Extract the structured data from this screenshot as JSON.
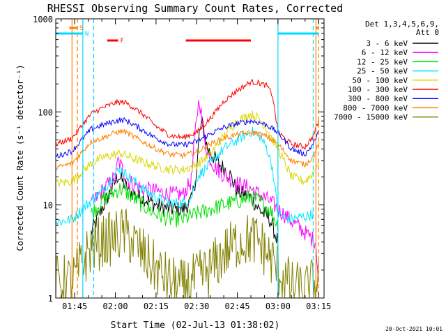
{
  "chart_data": {
    "type": "line",
    "title": "RHESSI Observing Summary Count Rates, Corrected",
    "xlabel": "Start Time (02-Jul-13 01:38:02)",
    "ylabel": "Corrected Count Rate (s⁻¹ detector⁻¹)",
    "y_scale": "log",
    "ylim": [
      1,
      1000
    ],
    "xlim": [
      "01:38",
      "03:17"
    ],
    "x_ticks": [
      "01:45",
      "02:00",
      "02:15",
      "02:30",
      "02:45",
      "03:00",
      "03:15"
    ],
    "y_ticks": [
      "1",
      "10",
      "100",
      "1000"
    ],
    "legend_header": [
      "Det 1,3,4,5,6,9,",
      "Att 0"
    ],
    "legend_position": "right",
    "timestamp": "20-Oct-2021 10:01",
    "flags": [
      {
        "label": "S",
        "color": "#ff8000",
        "intervals": [
          [
            "01:43",
            "01:46"
          ],
          [
            "03:14",
            "03:15"
          ]
        ]
      },
      {
        "label": "N",
        "color": "#00d8ff",
        "intervals": [
          [
            "01:38",
            "01:48"
          ],
          [
            "03:00",
            "03:15"
          ]
        ]
      },
      {
        "label": "F",
        "color": "#ff0000",
        "intervals": [
          [
            "01:57",
            "02:01"
          ],
          [
            "02:26",
            "02:50"
          ]
        ]
      }
    ],
    "vertical_markers": [
      {
        "time": "01:44",
        "color": "#ff8000",
        "style": "solid"
      },
      {
        "time": "01:46",
        "color": "#ff8000",
        "style": "dashed"
      },
      {
        "time": "01:48",
        "color": "#00d8ff",
        "style": "solid"
      },
      {
        "time": "01:52",
        "color": "#00d8ff",
        "style": "dashed"
      },
      {
        "time": "03:00",
        "color": "#00d8ff",
        "style": "solid"
      },
      {
        "time": "03:13",
        "color": "#00d8ff",
        "style": "dashed"
      },
      {
        "time": "03:14",
        "color": "#ff8000",
        "style": "solid"
      },
      {
        "time": "03:15",
        "color": "#ff8000",
        "style": "dashed"
      }
    ],
    "series": [
      {
        "name": "3 - 6 keV",
        "color": "#000000",
        "noise": 0.09,
        "points": [
          [
            "01:51",
            5
          ],
          [
            "01:55",
            9
          ],
          [
            "02:00",
            18
          ],
          [
            "02:01",
            21
          ],
          [
            "02:05",
            14
          ],
          [
            "02:10",
            12
          ],
          [
            "02:15",
            10
          ],
          [
            "02:20",
            9
          ],
          [
            "02:25",
            9
          ],
          [
            "02:28",
            11
          ],
          [
            "02:30",
            22
          ],
          [
            "02:31",
            60
          ],
          [
            "02:32",
            75
          ],
          [
            "02:34",
            40
          ],
          [
            "02:38",
            28
          ],
          [
            "02:42",
            22
          ],
          [
            "02:45",
            14
          ],
          [
            "02:50",
            12
          ],
          [
            "02:53",
            9
          ],
          [
            "02:57",
            7
          ],
          [
            "03:00",
            4
          ]
        ]
      },
      {
        "name": "6 - 12 keV",
        "color": "#ff00ff",
        "noise": 0.09,
        "points": [
          [
            "01:51",
            10
          ],
          [
            "01:55",
            14
          ],
          [
            "02:00",
            20
          ],
          [
            "02:01",
            30
          ],
          [
            "02:05",
            18
          ],
          [
            "02:10",
            15
          ],
          [
            "02:15",
            14
          ],
          [
            "02:20",
            13
          ],
          [
            "02:25",
            13
          ],
          [
            "02:28",
            18
          ],
          [
            "02:30",
            90
          ],
          [
            "02:31",
            140
          ],
          [
            "02:32",
            80
          ],
          [
            "02:34",
            35
          ],
          [
            "02:37",
            25
          ],
          [
            "02:40",
            21
          ],
          [
            "02:45",
            17
          ],
          [
            "02:50",
            15
          ],
          [
            "02:53",
            13
          ],
          [
            "02:57",
            11
          ],
          [
            "03:00",
            9
          ],
          [
            "03:14",
            4
          ],
          [
            "03:15",
            1.5
          ]
        ]
      },
      {
        "name": "12 - 25 keV",
        "color": "#00e000",
        "noise": 0.09,
        "points": [
          [
            "01:51",
            8
          ],
          [
            "01:55",
            11
          ],
          [
            "02:00",
            14
          ],
          [
            "02:02",
            15
          ],
          [
            "02:05",
            13
          ],
          [
            "02:10",
            10
          ],
          [
            "02:15",
            8
          ],
          [
            "02:20",
            7
          ],
          [
            "02:25",
            7
          ],
          [
            "02:30",
            8
          ],
          [
            "02:35",
            9
          ],
          [
            "02:40",
            10
          ],
          [
            "02:45",
            11
          ],
          [
            "02:50",
            12
          ],
          [
            "02:53",
            11
          ],
          [
            "02:57",
            9
          ],
          [
            "03:00",
            6
          ]
        ]
      },
      {
        "name": "25 - 50 keV",
        "color": "#00e8ff",
        "noise": 0.06,
        "points": [
          [
            "01:38",
            6.5
          ],
          [
            "01:44",
            7
          ],
          [
            "01:51",
            11
          ],
          [
            "01:55",
            14
          ],
          [
            "02:00",
            22
          ],
          [
            "02:02",
            24
          ],
          [
            "02:05",
            20
          ],
          [
            "02:10",
            15
          ],
          [
            "02:15",
            12
          ],
          [
            "02:20",
            10.5
          ],
          [
            "02:25",
            10.5
          ],
          [
            "02:28",
            12
          ],
          [
            "02:30",
            20
          ],
          [
            "02:33",
            24
          ],
          [
            "02:36",
            30
          ],
          [
            "02:40",
            40
          ],
          [
            "02:45",
            50
          ],
          [
            "02:50",
            62
          ],
          [
            "02:53",
            57
          ],
          [
            "02:56",
            40
          ],
          [
            "02:58",
            25
          ],
          [
            "03:00",
            8
          ],
          [
            "03:04",
            7
          ],
          [
            "03:10",
            7.5
          ],
          [
            "03:13",
            8
          ]
        ]
      },
      {
        "name": "50 - 100 keV",
        "color": "#d8d800",
        "noise": 0.05,
        "points": [
          [
            "01:38",
            17
          ],
          [
            "01:44",
            18
          ],
          [
            "01:51",
            28
          ],
          [
            "01:55",
            32
          ],
          [
            "02:00",
            35
          ],
          [
            "02:02",
            36
          ],
          [
            "02:05",
            33
          ],
          [
            "02:10",
            29
          ],
          [
            "02:15",
            26
          ],
          [
            "02:20",
            24
          ],
          [
            "02:25",
            24
          ],
          [
            "02:30",
            27
          ],
          [
            "02:35",
            35
          ],
          [
            "02:40",
            55
          ],
          [
            "02:45",
            80
          ],
          [
            "02:50",
            95
          ],
          [
            "02:53",
            85
          ],
          [
            "02:56",
            65
          ],
          [
            "03:00",
            40
          ],
          [
            "03:05",
            20
          ],
          [
            "03:10",
            18
          ],
          [
            "03:13",
            22
          ],
          [
            "03:15",
            30
          ]
        ]
      },
      {
        "name": "100 - 300 keV",
        "color": "#ff0000",
        "noise": 0.03,
        "points": [
          [
            "01:38",
            45
          ],
          [
            "01:44",
            52
          ],
          [
            "01:51",
            95
          ],
          [
            "01:55",
            110
          ],
          [
            "02:00",
            125
          ],
          [
            "02:03",
            128
          ],
          [
            "02:05",
            120
          ],
          [
            "02:10",
            95
          ],
          [
            "02:15",
            70
          ],
          [
            "02:20",
            56
          ],
          [
            "02:25",
            53
          ],
          [
            "02:30",
            60
          ],
          [
            "02:35",
            85
          ],
          [
            "02:40",
            130
          ],
          [
            "02:45",
            170
          ],
          [
            "02:50",
            210
          ],
          [
            "02:53",
            205
          ],
          [
            "02:56",
            190
          ],
          [
            "02:58",
            150
          ],
          [
            "03:00",
            60
          ],
          [
            "03:05",
            45
          ],
          [
            "03:10",
            42
          ],
          [
            "03:13",
            55
          ],
          [
            "03:15",
            80
          ]
        ]
      },
      {
        "name": "300 - 800 keV",
        "color": "#0000ff",
        "noise": 0.03,
        "points": [
          [
            "01:38",
            33
          ],
          [
            "01:44",
            38
          ],
          [
            "01:51",
            65
          ],
          [
            "01:55",
            72
          ],
          [
            "02:00",
            80
          ],
          [
            "02:03",
            82
          ],
          [
            "02:05",
            78
          ],
          [
            "02:10",
            64
          ],
          [
            "02:15",
            52
          ],
          [
            "02:20",
            45
          ],
          [
            "02:25",
            44
          ],
          [
            "02:30",
            48
          ],
          [
            "02:35",
            58
          ],
          [
            "02:40",
            68
          ],
          [
            "02:45",
            75
          ],
          [
            "02:50",
            80
          ],
          [
            "02:53",
            77
          ],
          [
            "02:56",
            72
          ],
          [
            "03:00",
            60
          ],
          [
            "03:05",
            40
          ],
          [
            "03:10",
            35
          ],
          [
            "03:13",
            45
          ],
          [
            "03:15",
            60
          ]
        ]
      },
      {
        "name": "800 - 7000 keV",
        "color": "#ff8000",
        "noise": 0.03,
        "points": [
          [
            "01:38",
            25
          ],
          [
            "01:44",
            28
          ],
          [
            "01:51",
            48
          ],
          [
            "01:55",
            52
          ],
          [
            "02:00",
            60
          ],
          [
            "02:03",
            62
          ],
          [
            "02:05",
            58
          ],
          [
            "02:10",
            48
          ],
          [
            "02:15",
            40
          ],
          [
            "02:20",
            35
          ],
          [
            "02:25",
            34
          ],
          [
            "02:30",
            37
          ],
          [
            "02:35",
            45
          ],
          [
            "02:40",
            52
          ],
          [
            "02:45",
            57
          ],
          [
            "02:50",
            60
          ],
          [
            "02:53",
            58
          ],
          [
            "02:56",
            54
          ],
          [
            "03:00",
            45
          ],
          [
            "03:05",
            30
          ],
          [
            "03:10",
            27
          ],
          [
            "03:13",
            33
          ],
          [
            "03:15",
            45
          ]
        ]
      },
      {
        "name": "7000 - 15000 keV",
        "color": "#808000",
        "noise": 0.3,
        "points": [
          [
            "01:38",
            1.5
          ],
          [
            "01:44",
            1.5
          ],
          [
            "01:51",
            3.5
          ],
          [
            "01:55",
            4
          ],
          [
            "02:00",
            4.5
          ],
          [
            "02:03",
            5
          ],
          [
            "02:05",
            4.5
          ],
          [
            "02:10",
            3
          ],
          [
            "02:15",
            2
          ],
          [
            "02:20",
            1.5
          ],
          [
            "02:25",
            1.3
          ],
          [
            "02:30",
            1.6
          ],
          [
            "02:35",
            2
          ],
          [
            "02:40",
            3
          ],
          [
            "02:45",
            4
          ],
          [
            "02:50",
            4.3
          ],
          [
            "02:53",
            4
          ],
          [
            "02:56",
            3
          ],
          [
            "03:00",
            2
          ],
          [
            "03:05",
            1.3
          ],
          [
            "03:10",
            1.2
          ],
          [
            "03:15",
            1.5
          ]
        ]
      }
    ]
  }
}
